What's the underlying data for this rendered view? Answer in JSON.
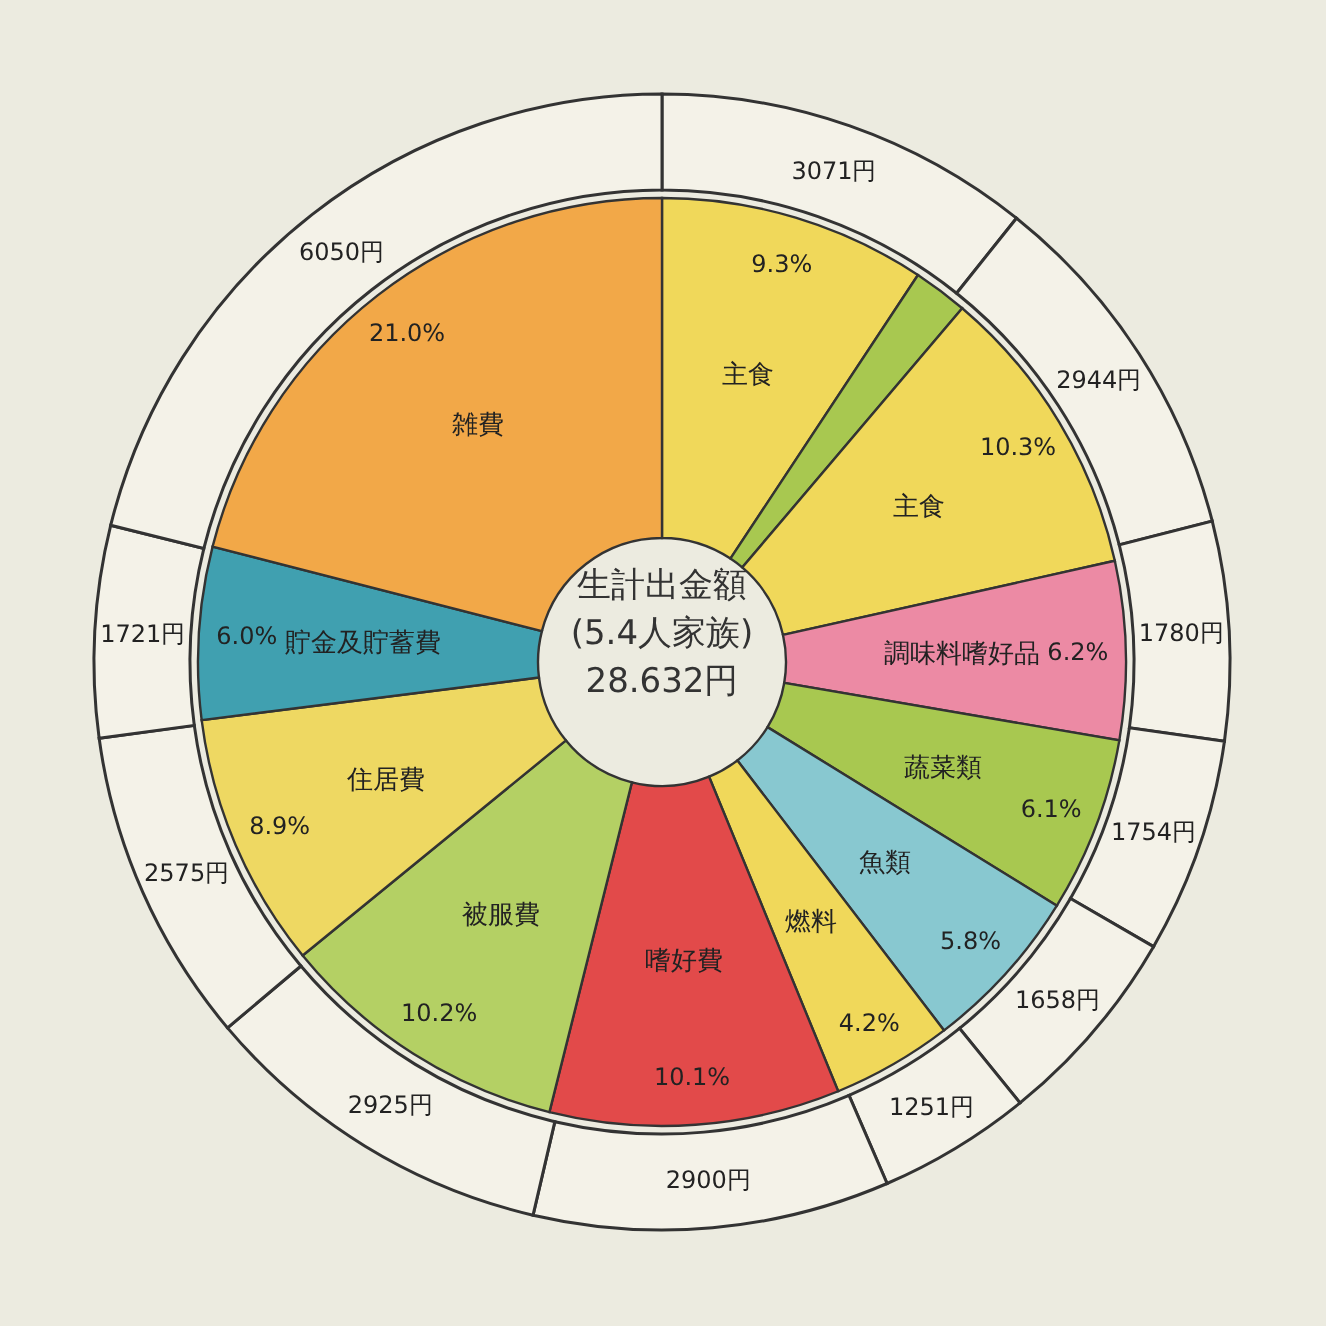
{
  "chart_data": {
    "type": "donut",
    "title": "生計出金額",
    "subtitle": "(5.4人家族)",
    "annotations": [
      "28.632円"
    ],
    "categories": [
      "主食",
      null,
      "主食",
      "調味料嗜好品",
      "蔬菜類",
      "魚類",
      "燃料",
      "嗜好費",
      "被服費",
      "住居費",
      "貯金及貯蓄費",
      "雑費"
    ],
    "series": [
      {
        "values": [
          9.3,
          1.9,
          10.3,
          6.2,
          6.1,
          5.8,
          4.2,
          10.1,
          10.2,
          8.9,
          6.0,
          21.0
        ],
        "colors": [
          "#f0d85a",
          "#a8c850",
          "#f0d85a",
          "#ec8aa4",
          "#a8c850",
          "#88c8d0",
          "#f0d85a",
          "#e24a4a",
          "#b4d064",
          "#eed862",
          "#40a0b0",
          "#f2a848"
        ],
        "value_labels": [
          "9.3%",
          null,
          "10.3%",
          "6.2%",
          "6.1%",
          "5.8%",
          "4.2%",
          "10.1%",
          "10.2%",
          "8.9%",
          "6.0%",
          "21.0%"
        ]
      },
      {
        "values": [
          3071,
          null,
          2944,
          1780,
          1754,
          1658,
          1251,
          2900,
          2925,
          2575,
          1721,
          6050
        ],
        "color": "#f4f2e8",
        "value_labels": [
          "3071円",
          null,
          "2944円",
          "1780円",
          "1754円",
          "1658円",
          "1251円",
          "2900円",
          "2925円",
          "2575円",
          "1721円",
          "6050円"
        ]
      }
    ]
  }
}
